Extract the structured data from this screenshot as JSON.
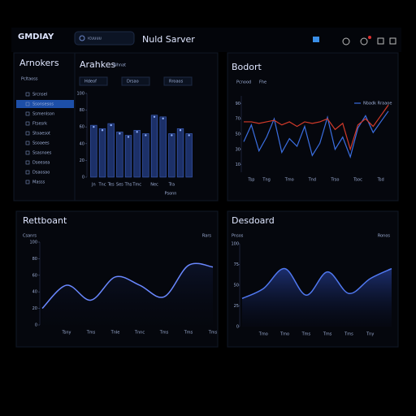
{
  "header": {
    "logo": "GMDIAY",
    "search": "ıcuuuu",
    "title": "Nuld Sarver"
  },
  "sidebar": {
    "title": "Arnokers",
    "subtitle": "Pcltaoss",
    "items": [
      "Srcnsel",
      "Ssonsesos",
      "Ssmenlson",
      "Ftsesrk",
      "Stoaesot",
      "Ssoaees",
      "Ssasnoes",
      "Dseesea",
      "Dsaosao",
      "Masss"
    ],
    "active": 1
  },
  "chart_data": [
    {
      "type": "bar",
      "title": "Arahkes",
      "subtitle": "Nhnat",
      "tabs": [
        "Hdeof",
        "Drsao",
        "Rroaos"
      ],
      "legend_note": "Psonn",
      "categories": [
        "Jn",
        "Tnc",
        "Tes",
        "Ses",
        "Ths",
        "Tmc",
        null,
        "Nec",
        null,
        "Tra",
        null,
        null
      ],
      "values": [
        62,
        58,
        64,
        54,
        50,
        56,
        52,
        74,
        72,
        52,
        58,
        52
      ],
      "color": "#1c3068",
      "edge": "#3f62c0",
      "ylim": [
        0,
        100
      ],
      "yticks": [
        0,
        20,
        40,
        60,
        80,
        100
      ],
      "grid": false
    },
    {
      "type": "line",
      "title": "Bodort",
      "tabs": [
        "Pcnood",
        "Fhe"
      ],
      "categories": [
        null,
        "Tsp",
        null,
        "Tng",
        null,
        null,
        "Tmo",
        null,
        null,
        "Tnd",
        null,
        null,
        "Trso",
        null,
        null,
        "Tsoc",
        null,
        null,
        "Tsd",
        null
      ],
      "series": [
        {
          "name": "Nbadk Rraaoe",
          "color": "#3a6ee0",
          "values": [
            40,
            62,
            28,
            46,
            70,
            26,
            44,
            34,
            60,
            22,
            38,
            72,
            30,
            46,
            20,
            58,
            74,
            52,
            66,
            80
          ]
        },
        {
          "name": null,
          "color": "#d23a2a",
          "values": [
            66,
            66,
            64,
            66,
            68,
            62,
            66,
            60,
            66,
            64,
            66,
            70,
            56,
            64,
            30,
            62,
            70,
            60,
            74,
            88
          ]
        }
      ],
      "ylim": [
        0,
        100
      ],
      "yticks": [
        10,
        30,
        50,
        70,
        90
      ],
      "grid": false
    },
    {
      "type": "area",
      "title": "Rettboant",
      "subtitle": "Csanrs",
      "note": "Rars",
      "fill_opacity": 0.15,
      "categories": [
        null,
        "Tsny",
        "Tms",
        "Tnle",
        "Tnnc",
        "Tms",
        "Tms",
        "Tms"
      ],
      "values": [
        20,
        48,
        30,
        58,
        48,
        34,
        72,
        70
      ],
      "color": "#6a88ff",
      "ylim": [
        0,
        100
      ],
      "yticks": [
        0,
        20,
        40,
        60,
        80,
        100
      ],
      "grid": false
    },
    {
      "type": "area",
      "title": "Desdoard",
      "subtitle": "Pnsos",
      "note": "Ronos",
      "fill_opacity": 0.55,
      "categories": [
        null,
        "Tmo",
        "Tmo",
        "Tms",
        "Tms",
        "Tms",
        "Tny",
        null
      ],
      "values": [
        34,
        46,
        70,
        38,
        66,
        40,
        58,
        70
      ],
      "color": "#5078f0",
      "ylim": [
        0,
        100
      ],
      "yticks": [
        0,
        25,
        50,
        75,
        100
      ],
      "grid": false
    }
  ]
}
